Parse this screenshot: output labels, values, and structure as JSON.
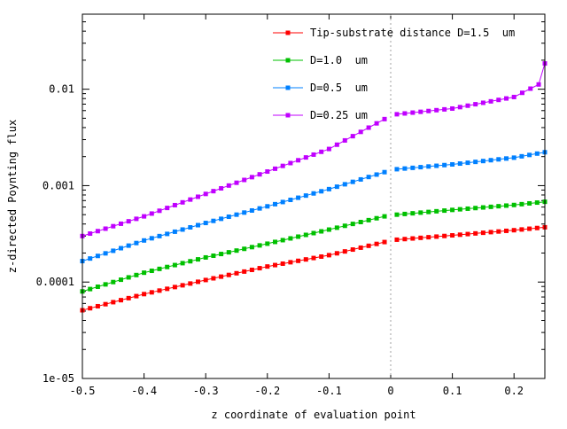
{
  "chart_data": {
    "type": "line",
    "title": "",
    "xlabel": "z coordinate of evaluation point",
    "ylabel": "z-directed Poynting flux",
    "xlim": [
      -0.5,
      0.25
    ],
    "ylim": [
      1e-05,
      0.06
    ],
    "yscale": "log",
    "grid": false,
    "legend_position": "top-right",
    "xticks": [
      -0.5,
      -0.4,
      -0.3,
      -0.2,
      -0.1,
      0,
      0.1,
      0.2
    ],
    "xtick_labels": [
      "-0.5",
      "-0.4",
      "-0.3",
      "-0.2",
      "-0.1",
      "0",
      "0.1",
      "0.2"
    ],
    "yticks": [
      1e-05,
      0.0001,
      0.001,
      0.01
    ],
    "ytick_labels": [
      "1e-05",
      "0.0001",
      "0.001",
      "0.01"
    ],
    "vertical_reference_line_x": 0,
    "series": [
      {
        "name": "Tip-substrate distance D=1.5  um",
        "color": "#ff0000",
        "x": [
          -0.5,
          -0.4,
          -0.3,
          -0.2,
          -0.1,
          -0.01,
          0.01,
          0.1,
          0.2,
          0.25
        ],
        "y": [
          5.1e-05,
          7.5e-05,
          0.000105,
          0.000145,
          0.00019,
          0.00026,
          0.000275,
          0.000305,
          0.000345,
          0.00037
        ]
      },
      {
        "name": "D=1.0  um",
        "color": "#00c000",
        "x": [
          -0.5,
          -0.4,
          -0.3,
          -0.2,
          -0.1,
          -0.01,
          0.01,
          0.1,
          0.2,
          0.25
        ],
        "y": [
          8e-05,
          0.000125,
          0.00018,
          0.00025,
          0.00035,
          0.00048,
          0.0005,
          0.00056,
          0.00063,
          0.00068
        ]
      },
      {
        "name": "D=0.5  um",
        "color": "#0080ff",
        "x": [
          -0.5,
          -0.4,
          -0.3,
          -0.2,
          -0.1,
          -0.01,
          0.01,
          0.1,
          0.2,
          0.25
        ],
        "y": [
          0.000165,
          0.00027,
          0.00041,
          0.00061,
          0.00092,
          0.00138,
          0.00148,
          0.00166,
          0.00195,
          0.00222
        ]
      },
      {
        "name": "D=0.25 um",
        "color": "#c000ff",
        "x": [
          -0.5,
          -0.4,
          -0.3,
          -0.2,
          -0.1,
          -0.01,
          0.01,
          0.1,
          0.2,
          0.24,
          0.25
        ],
        "y": [
          0.0003,
          0.00048,
          0.00082,
          0.0014,
          0.0024,
          0.0049,
          0.0055,
          0.0063,
          0.0083,
          0.0112,
          0.0185
        ]
      }
    ]
  }
}
